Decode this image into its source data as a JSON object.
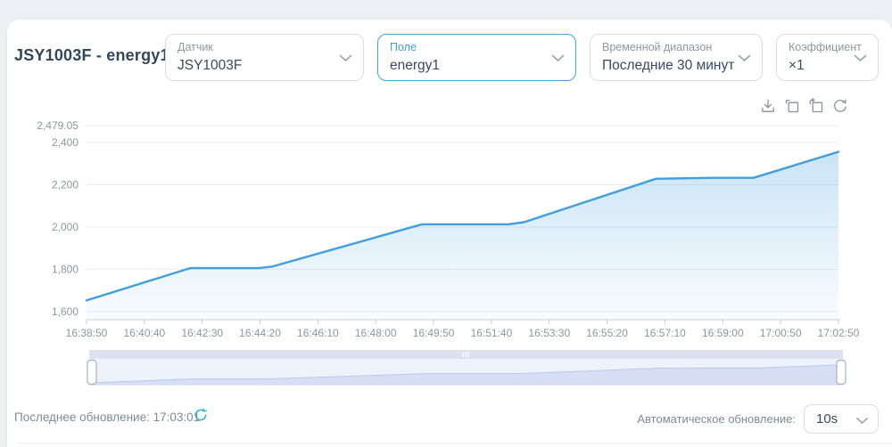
{
  "header": {
    "title": "JSY1003F - energy1",
    "selects": [
      {
        "id": "sensor",
        "label": "Датчик",
        "value": "JSY1003F",
        "active": false
      },
      {
        "id": "field",
        "label": "Поле",
        "value": "energy1",
        "active": true
      },
      {
        "id": "time-range",
        "label": "Временной диапазон",
        "value": "Последние 30 минут",
        "active": false
      },
      {
        "id": "coefficient",
        "label": "Коэффициент",
        "value": "×1",
        "active": false
      }
    ]
  },
  "chart_toolbar": {
    "icons": [
      "download-icon",
      "zoom-select-icon",
      "zoom-reset-icon",
      "restore-icon"
    ]
  },
  "chart_data": {
    "type": "area",
    "title": "",
    "series_name": "energy1",
    "legend": "none",
    "grid": true,
    "x_ticks": [
      "16:38:50",
      "16:40:40",
      "16:42:30",
      "16:44:20",
      "16:46:10",
      "16:48:00",
      "16:49:50",
      "16:51:40",
      "16:53:30",
      "16:55:20",
      "16:57:10",
      "16:59:00",
      "17:00:50",
      "17:02:50"
    ],
    "y_ticks": [
      {
        "label": "2,479.05",
        "value": 2479.05
      },
      {
        "label": "2,400",
        "value": 2400
      },
      {
        "label": "2,200",
        "value": 2200
      },
      {
        "label": "2,000",
        "value": 2000
      },
      {
        "label": "1,800",
        "value": 1800
      },
      {
        "label": "1,600",
        "value": 1600
      }
    ],
    "ylim_drawn": [
      1560,
      2479.05
    ],
    "values_at_ticks": [
      1653,
      1739,
      1806,
      1813,
      1875,
      1952,
      2013,
      2013,
      2061,
      2152,
      2228,
      2233,
      2272,
      2356
    ],
    "line_points": [
      {
        "x": 0.0,
        "v": 1653
      },
      {
        "x": 0.138,
        "v": 1806
      },
      {
        "x": 0.229,
        "v": 1806
      },
      {
        "x": 0.247,
        "v": 1813
      },
      {
        "x": 0.446,
        "v": 2013
      },
      {
        "x": 0.561,
        "v": 2013
      },
      {
        "x": 0.582,
        "v": 2023
      },
      {
        "x": 0.757,
        "v": 2228
      },
      {
        "x": 0.834,
        "v": 2233
      },
      {
        "x": 0.887,
        "v": 2233
      },
      {
        "x": 1.0,
        "v": 2356
      }
    ],
    "line_color": "#3f9fdf",
    "area_color": "#3f9fdf"
  },
  "slider": {
    "name": "time-range-brush",
    "range": "full"
  },
  "footer": {
    "last_update_label": "Последнее обновление:",
    "last_update_time": "17:03:01",
    "auto_refresh_label": "Автоматическое обновление:",
    "auto_refresh_value": "10s"
  },
  "colors": {
    "background": "#edf0f4",
    "card": "#ffffff",
    "accent_blue": "#3aa0d8",
    "chart_line": "#3f9fdf",
    "refresh_teal": "#2bb3c6",
    "text_dark": "#33475b",
    "text_gray": "#8d97a7"
  }
}
